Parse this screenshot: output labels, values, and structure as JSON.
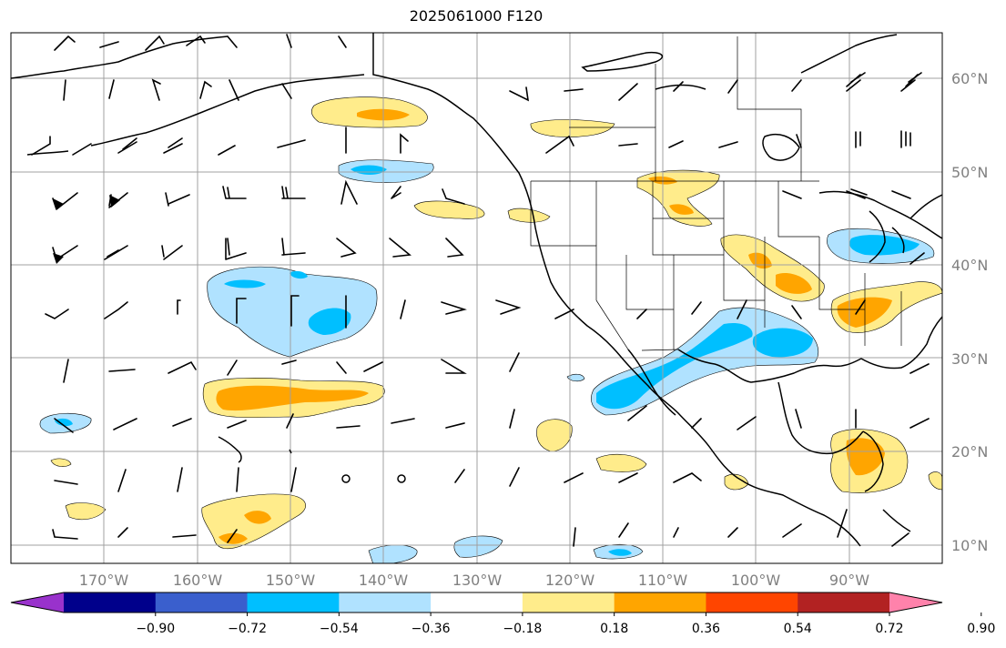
{
  "title": "2025061000 F120",
  "lat_labels": [
    "60°N",
    "50°N",
    "40°N",
    "30°N",
    "20°N",
    "10°N"
  ],
  "lon_labels": [
    "170°W",
    "160°W",
    "150°W",
    "140°W",
    "130°W",
    "120°W",
    "110°W",
    "100°W",
    "90°W"
  ],
  "colorbar": {
    "ticks": [
      "−0.90",
      "−0.72",
      "−0.54",
      "−0.36",
      "−0.18",
      "0.18",
      "0.36",
      "0.54",
      "0.72",
      "0.90"
    ],
    "colors": [
      "#9932cc",
      "#00008b",
      "#3a5fcd",
      "#00bfff",
      "#b0e2ff",
      "#ffffff",
      "#ffec8b",
      "#ffa500",
      "#ff4500",
      "#b22222",
      "#ff82ab"
    ]
  },
  "fill_colors": {
    "light_blue": "#b0e2ff",
    "blue": "#00bfff",
    "light_yellow": "#ffec8b",
    "orange": "#ffa500"
  }
}
